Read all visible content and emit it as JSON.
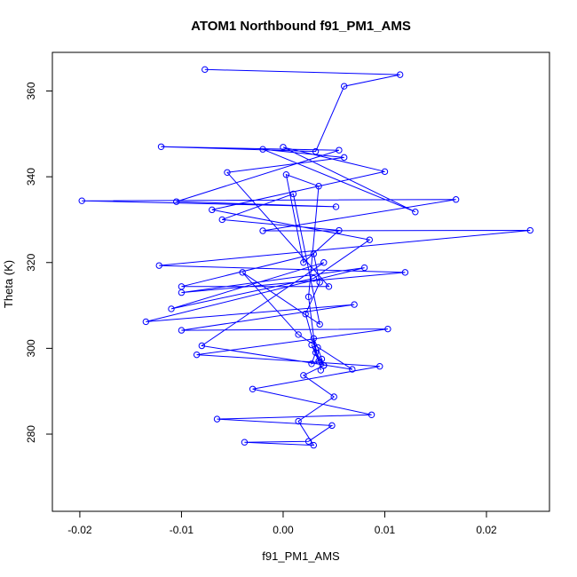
{
  "chart_data": {
    "type": "line",
    "title": "ATOM1 Northbound f91_PM1_AMS",
    "xlabel": "f91_PM1_AMS",
    "ylabel": "Theta (K)",
    "xlim": [
      -0.0227,
      0.0262
    ],
    "ylim": [
      262,
      369
    ],
    "x_ticks": [
      -0.02,
      -0.01,
      0.0,
      0.01,
      0.02
    ],
    "x_tick_labels": [
      "-0.02",
      "-0.01",
      "0.00",
      "0.01",
      "0.02"
    ],
    "y_ticks": [
      280,
      300,
      320,
      340,
      360
    ],
    "y_tick_labels": [
      "280",
      "300",
      "320",
      "340",
      "360"
    ],
    "grid": false,
    "series": [
      {
        "color": "#0000ff",
        "marker": "open-circle",
        "x": [
          -0.0077,
          0.0115,
          0.006,
          0.0032,
          -0.012,
          0.0055,
          -0.0105,
          0.0052,
          -0.0198,
          0.017,
          -0.002,
          0.0243,
          -0.0122,
          0.012,
          -0.01,
          0.008,
          -0.0135,
          0.007,
          -0.01,
          0.0103,
          -0.0085,
          0.0095,
          -0.003,
          0.0087,
          -0.0065,
          0.0048,
          0.0025,
          -0.0038,
          0.003,
          0.0015,
          0.005,
          0.002,
          0.004,
          0.0028,
          0.0035,
          0.0022,
          0.0036,
          0.003,
          -0.01,
          0.0045,
          -0.0055,
          0.006,
          -0.002,
          0.013,
          0.0,
          0.01,
          -0.007,
          0.0085,
          0.003,
          -0.011,
          0.004,
          -0.008,
          0.0068,
          0.0015,
          -0.004,
          0.0036,
          0.001,
          -0.006,
          0.0055,
          0.002,
          0.0003,
          0.0035,
          0.0025,
          0.0032,
          0.0028,
          0.0038,
          0.004,
          0.0034,
          0.003,
          0.0037
        ],
        "y": [
          365.0,
          363.8,
          361.1,
          345.9,
          347.0,
          346.2,
          334.2,
          333.0,
          334.4,
          334.7,
          327.4,
          327.5,
          319.3,
          317.7,
          313.0,
          318.8,
          306.2,
          310.2,
          304.2,
          304.5,
          298.5,
          295.8,
          290.5,
          284.5,
          283.5,
          282.0,
          278.3,
          278.1,
          277.4,
          283.0,
          288.7,
          293.7,
          296.0,
          300.8,
          297.0,
          308.0,
          315.4,
          322.0,
          314.4,
          314.4,
          341.0,
          344.5,
          346.4,
          331.8,
          346.9,
          341.2,
          332.3,
          325.3,
          316.3,
          309.2,
          320.0,
          300.6,
          295.1,
          303.2,
          317.7,
          305.6,
          336.0,
          330.0,
          327.5,
          320.0,
          340.5,
          337.8,
          312.0,
          299.0,
          296.4,
          297.5,
          296.0,
          300.2,
          302.3,
          294.9
        ]
      }
    ]
  }
}
